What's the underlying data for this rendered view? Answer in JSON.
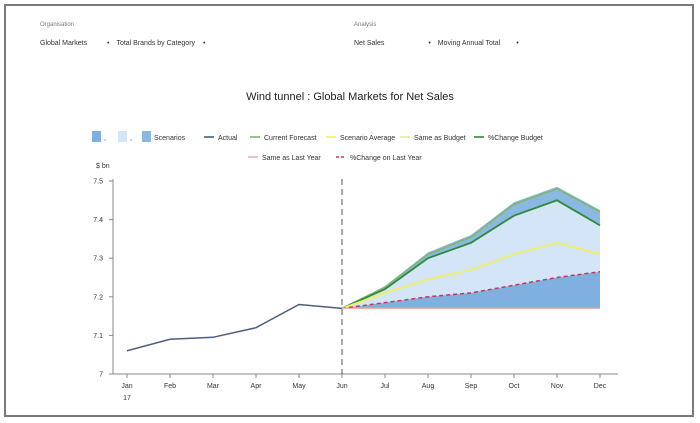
{
  "filters": {
    "organisation_label": "Organisation",
    "organisation_value": "Global Markets",
    "category_value": "Total Brands by Category",
    "analysis_label": "Analysis",
    "measure_value": "Net Sales",
    "period_value": "Moving Annual Total",
    "dropdown_glyph": "•"
  },
  "chart_data": {
    "type": "area",
    "title": "Wind tunnel : Global Markets for Net Sales",
    "ylabel": "$ bn",
    "ylim": [
      7.0,
      7.5
    ],
    "yticks": [
      7,
      7.1,
      7.2,
      7.3,
      7.4,
      7.5
    ],
    "ytick_labels": [
      "7",
      "7.1",
      "7.2",
      "7.3",
      "7.4",
      "7.5"
    ],
    "categories": [
      "Jan",
      "Feb",
      "Mar",
      "Apr",
      "May",
      "Jun",
      "Jul",
      "Aug",
      "Sep",
      "Oct",
      "Nov",
      "Dec"
    ],
    "year_label": "17",
    "divider_at": "Jun",
    "legend": [
      {
        "label": ",",
        "kind": "swatch",
        "color": "#7fb0e0"
      },
      {
        "label": ",",
        "kind": "swatch",
        "color": "#d3e5f6"
      },
      {
        "label": "Scenarios",
        "kind": "swatch",
        "color": "#8bb8e3"
      },
      {
        "label": "Actual",
        "kind": "line",
        "color": "#4a5f7e"
      },
      {
        "label": "Current Forecast",
        "kind": "line",
        "color": "#7fb86a"
      },
      {
        "label": "Scenario Average",
        "kind": "line",
        "color": "#f0f060"
      },
      {
        "label": "Same as Budget",
        "kind": "line",
        "color": "#d8ef9a"
      },
      {
        "label": "%Change Budget",
        "kind": "line",
        "color": "#2f8a3a"
      },
      {
        "label": "Same as Last Year",
        "kind": "line",
        "color": "#f0b0b0"
      },
      {
        "label": "%Change on Last Year",
        "kind": "dashed",
        "color": "#c8365a"
      }
    ],
    "series": [
      {
        "name": "Actual",
        "color": "#4a5f7e",
        "values": [
          7.06,
          7.09,
          7.095,
          7.12,
          7.18,
          7.17,
          null,
          null,
          null,
          null,
          null,
          null
        ]
      },
      {
        "name": "Current Forecast",
        "color": "#7fb86a",
        "values": [
          null,
          null,
          null,
          null,
          null,
          7.17,
          7.225,
          7.31,
          7.355,
          7.44,
          7.48,
          7.42
        ]
      },
      {
        "name": "%Change Budget",
        "color": "#2f8a3a",
        "values": [
          null,
          null,
          null,
          null,
          null,
          7.17,
          7.22,
          7.3,
          7.34,
          7.41,
          7.45,
          7.385
        ]
      },
      {
        "name": "Scenario Average",
        "color": "#f0f060",
        "values": [
          null,
          null,
          null,
          null,
          null,
          7.17,
          7.21,
          7.245,
          7.27,
          7.31,
          7.34,
          7.31
        ]
      },
      {
        "name": "%Change on Last Year",
        "color": "#c8365a",
        "values": [
          null,
          null,
          null,
          null,
          null,
          7.17,
          7.185,
          7.2,
          7.21,
          7.23,
          7.25,
          7.265
        ]
      },
      {
        "name": "Same as Last Year",
        "color": "#f0b0b0",
        "values": [
          null,
          null,
          null,
          null,
          null,
          7.17,
          7.17,
          7.17,
          7.17,
          7.17,
          7.17,
          7.17
        ]
      }
    ],
    "bands": [
      {
        "name": "Scenarios",
        "color": "#8bb8e3",
        "upper": [
          null,
          null,
          null,
          null,
          null,
          7.17,
          7.228,
          7.315,
          7.36,
          7.445,
          7.485,
          7.425
        ],
        "lower": [
          null,
          null,
          null,
          null,
          null,
          7.17,
          7.22,
          7.3,
          7.34,
          7.41,
          7.45,
          7.385
        ]
      },
      {
        "name": ",",
        "color": "#d3e5f6",
        "upper": [
          null,
          null,
          null,
          null,
          null,
          7.17,
          7.22,
          7.3,
          7.34,
          7.41,
          7.45,
          7.385
        ],
        "lower": [
          null,
          null,
          null,
          null,
          null,
          7.17,
          7.185,
          7.2,
          7.21,
          7.23,
          7.25,
          7.265
        ]
      },
      {
        "name": ",",
        "color": "#7fb0e0",
        "upper": [
          null,
          null,
          null,
          null,
          null,
          7.17,
          7.185,
          7.2,
          7.21,
          7.23,
          7.25,
          7.265
        ],
        "lower": [
          null,
          null,
          null,
          null,
          null,
          7.17,
          7.17,
          7.17,
          7.17,
          7.17,
          7.17,
          7.17
        ]
      }
    ]
  }
}
